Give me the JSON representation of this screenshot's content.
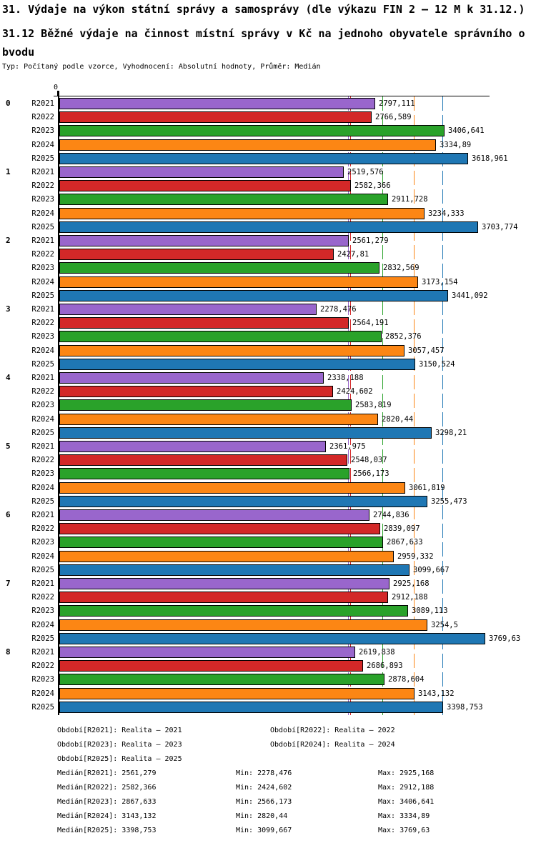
{
  "header": {
    "title": "31. Výdaje na výkon státní správy a samosprávy (dle výkazu FIN 2 – 12 M k 31.12.)",
    "subtitle_line1": "31.12 Běžné výdaje na činnost místní správy v Kč na jednoho obyvatele správního o",
    "subtitle_line2": "bvodu",
    "meta": "Typ: Počítaný podle vzorce, Vyhodnocení: Absolutní hodnoty, Průměr: Medián"
  },
  "chart_data": {
    "type": "bar",
    "orientation": "horizontal",
    "axis_zero_label": "0",
    "xlim": [
      0,
      3850
    ],
    "series_labels": [
      "R2021",
      "R2022",
      "R2023",
      "R2024",
      "R2025"
    ],
    "series_colors": [
      "#9966CC",
      "#D32828",
      "#2AA22A",
      "#FC8614",
      "#1F77B4"
    ],
    "groups": [
      {
        "label": "0",
        "bars": [
          {
            "series": "R2021",
            "value": 2797.111,
            "display": "2797,111"
          },
          {
            "series": "R2022",
            "value": 2766.589,
            "display": "2766,589"
          },
          {
            "series": "R2023",
            "value": 3406.641,
            "display": "3406,641"
          },
          {
            "series": "R2024",
            "value": 3334.89,
            "display": "3334,89"
          },
          {
            "series": "R2025",
            "value": 3618.961,
            "display": "3618,961"
          }
        ]
      },
      {
        "label": "1",
        "bars": [
          {
            "series": "R2021",
            "value": 2519.576,
            "display": "2519,576"
          },
          {
            "series": "R2022",
            "value": 2582.366,
            "display": "2582,366"
          },
          {
            "series": "R2023",
            "value": 2911.728,
            "display": "2911,728"
          },
          {
            "series": "R2024",
            "value": 3234.333,
            "display": "3234,333"
          },
          {
            "series": "R2025",
            "value": 3703.774,
            "display": "3703,774"
          }
        ]
      },
      {
        "label": "2",
        "bars": [
          {
            "series": "R2021",
            "value": 2561.279,
            "display": "2561,279"
          },
          {
            "series": "R2022",
            "value": 2427.81,
            "display": "2427,81"
          },
          {
            "series": "R2023",
            "value": 2832.569,
            "display": "2832,569"
          },
          {
            "series": "R2024",
            "value": 3173.154,
            "display": "3173,154"
          },
          {
            "series": "R2025",
            "value": 3441.092,
            "display": "3441,092"
          }
        ]
      },
      {
        "label": "3",
        "bars": [
          {
            "series": "R2021",
            "value": 2278.476,
            "display": "2278,476"
          },
          {
            "series": "R2022",
            "value": 2564.191,
            "display": "2564,191"
          },
          {
            "series": "R2023",
            "value": 2852.376,
            "display": "2852,376"
          },
          {
            "series": "R2024",
            "value": 3057.457,
            "display": "3057,457"
          },
          {
            "series": "R2025",
            "value": 3150.524,
            "display": "3150,524"
          }
        ]
      },
      {
        "label": "4",
        "bars": [
          {
            "series": "R2021",
            "value": 2338.188,
            "display": "2338,188"
          },
          {
            "series": "R2022",
            "value": 2424.602,
            "display": "2424,602"
          },
          {
            "series": "R2023",
            "value": 2583.819,
            "display": "2583,819"
          },
          {
            "series": "R2024",
            "value": 2820.44,
            "display": "2820,44"
          },
          {
            "series": "R2025",
            "value": 3298.21,
            "display": "3298,21"
          }
        ]
      },
      {
        "label": "5",
        "bars": [
          {
            "series": "R2021",
            "value": 2361.975,
            "display": "2361,975"
          },
          {
            "series": "R2022",
            "value": 2548.037,
            "display": "2548,037"
          },
          {
            "series": "R2023",
            "value": 2566.173,
            "display": "2566,173"
          },
          {
            "series": "R2024",
            "value": 3061.819,
            "display": "3061,819"
          },
          {
            "series": "R2025",
            "value": 3255.473,
            "display": "3255,473"
          }
        ]
      },
      {
        "label": "6",
        "bars": [
          {
            "series": "R2021",
            "value": 2744.836,
            "display": "2744,836"
          },
          {
            "series": "R2022",
            "value": 2839.097,
            "display": "2839,097"
          },
          {
            "series": "R2023",
            "value": 2867.633,
            "display": "2867,633"
          },
          {
            "series": "R2024",
            "value": 2959.332,
            "display": "2959,332"
          },
          {
            "series": "R2025",
            "value": 3099.667,
            "display": "3099,667"
          }
        ]
      },
      {
        "label": "7",
        "bars": [
          {
            "series": "R2021",
            "value": 2925.168,
            "display": "2925,168"
          },
          {
            "series": "R2022",
            "value": 2912.188,
            "display": "2912,188"
          },
          {
            "series": "R2023",
            "value": 3089.113,
            "display": "3089,113"
          },
          {
            "series": "R2024",
            "value": 3254.5,
            "display": "3254,5"
          },
          {
            "series": "R2025",
            "value": 3769.63,
            "display": "3769,63"
          }
        ]
      },
      {
        "label": "8",
        "bars": [
          {
            "series": "R2021",
            "value": 2619.838,
            "display": "2619,838"
          },
          {
            "series": "R2022",
            "value": 2686.893,
            "display": "2686,893"
          },
          {
            "series": "R2023",
            "value": 2878.604,
            "display": "2878,604"
          },
          {
            "series": "R2024",
            "value": 3143.132,
            "display": "3143,132"
          },
          {
            "series": "R2025",
            "value": 3398.753,
            "display": "3398,753"
          }
        ]
      }
    ],
    "median_lines": [
      {
        "series": "R2021",
        "value": 2561.279,
        "color": "#9966CC"
      },
      {
        "series": "R2022",
        "value": 2582.366,
        "color": "#D32828"
      },
      {
        "series": "R2023",
        "value": 2867.633,
        "color": "#2AA22A"
      },
      {
        "series": "R2024",
        "value": 3143.132,
        "color": "#FC8614"
      },
      {
        "series": "R2025",
        "value": 3398.753,
        "color": "#1F77B4"
      }
    ]
  },
  "legend": {
    "periods": [
      {
        "label": "Období[R2021]: Realita – 2021",
        "col": 0,
        "row": 0
      },
      {
        "label": "Období[R2022]: Realita – 2022",
        "col": 1,
        "row": 0
      },
      {
        "label": "Období[R2023]: Realita – 2023",
        "col": 0,
        "row": 1
      },
      {
        "label": "Období[R2024]: Realita – 2024",
        "col": 1,
        "row": 1
      },
      {
        "label": "Období[R2025]: Realita – 2025",
        "col": 0,
        "row": 2
      }
    ],
    "stats": [
      {
        "median": "Medián[R2021]: 2561,279",
        "min": "Min: 2278,476",
        "max": "Max: 2925,168"
      },
      {
        "median": "Medián[R2022]: 2582,366",
        "min": "Min: 2424,602",
        "max": "Max: 2912,188"
      },
      {
        "median": "Medián[R2023]: 2867,633",
        "min": "Min: 2566,173",
        "max": "Max: 3406,641"
      },
      {
        "median": "Medián[R2024]: 3143,132",
        "min": "Min: 2820,44",
        "max": "Max: 3334,89"
      },
      {
        "median": "Medián[R2025]: 3398,753",
        "min": "Min: 3099,667",
        "max": "Max: 3769,63"
      }
    ]
  }
}
